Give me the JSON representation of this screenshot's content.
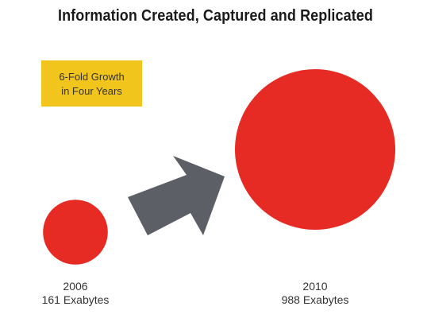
{
  "title": "Information Created, Captured and Replicated",
  "badge": {
    "line1": "6-Fold Growth",
    "line2": "in Four Years",
    "color": "#f2c51c"
  },
  "chart_data": {
    "type": "bubble",
    "title": "Information Created, Captured and Replicated",
    "unit": "Exabytes",
    "categories": [
      "2006",
      "2010"
    ],
    "values": [
      161,
      988
    ],
    "value_labels": [
      "161 Exabytes",
      "988 Exabytes"
    ],
    "annotation": "6-Fold Growth in Four Years",
    "bubble_color": "#e62a24",
    "arrow_color": "#5d5f66"
  }
}
